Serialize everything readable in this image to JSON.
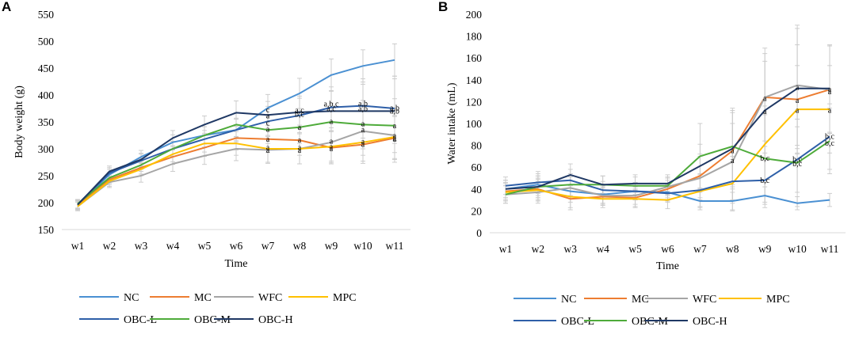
{
  "figure": {
    "colors": {
      "NC": "#4a90d2",
      "MC": "#ed7d31",
      "WFC": "#a5a5a5",
      "MPC": "#ffc000",
      "OBC-L": "#2e5fa8",
      "OBC-M": "#4eab3a",
      "OBC-H": "#1f3864",
      "error_bar": "#c8c8c8"
    }
  },
  "chart_data": [
    {
      "panel_label": "A",
      "type": "line",
      "title": "",
      "xlabel": "Time",
      "ylabel": "Body weight (g)",
      "categories": [
        "w1",
        "w2",
        "w3",
        "w4",
        "w5",
        "w6",
        "w7",
        "w8",
        "w9",
        "w10",
        "w11"
      ],
      "ylim": [
        150,
        550
      ],
      "yticks": [
        150,
        200,
        250,
        300,
        350,
        400,
        450,
        500,
        550
      ],
      "ytick_labels": [
        "150",
        "200",
        "250",
        "300",
        "350",
        "400",
        "450",
        "500",
        "550"
      ],
      "legend": [
        "NC",
        "MC",
        "WFC",
        "MPC",
        "OBC-L",
        "OBC-M",
        "OBC-H"
      ],
      "legend_position": "bottom",
      "series": [
        {
          "name": "NC",
          "values": [
            195,
            252,
            285,
            312,
            325,
            335,
            376,
            403,
            437,
            454,
            465
          ],
          "err": [
            8,
            10,
            12,
            14,
            16,
            20,
            25,
            28,
            30,
            30,
            30
          ]
        },
        {
          "name": "MC",
          "values": [
            195,
            243,
            265,
            285,
            302,
            320,
            318,
            316,
            302,
            308,
            320
          ],
          "err": [
            8,
            10,
            12,
            14,
            16,
            22,
            25,
            28,
            30,
            35,
            40
          ]
        },
        {
          "name": "WFC",
          "values": [
            193,
            238,
            250,
            272,
            287,
            300,
            298,
            300,
            312,
            333,
            325
          ],
          "err": [
            8,
            10,
            12,
            14,
            16,
            22,
            25,
            28,
            35,
            45,
            50
          ]
        },
        {
          "name": "MPC",
          "values": [
            193,
            240,
            262,
            290,
            310,
            310,
            300,
            300,
            304,
            312,
            322
          ],
          "err": [
            8,
            10,
            12,
            14,
            16,
            22,
            25,
            28,
            30,
            35,
            40
          ]
        },
        {
          "name": "OBC-L",
          "values": [
            197,
            255,
            278,
            300,
            318,
            335,
            351,
            362,
            377,
            380,
            375
          ],
          "err": [
            8,
            10,
            12,
            14,
            16,
            22,
            28,
            32,
            38,
            50,
            60
          ]
        },
        {
          "name": "OBC-M",
          "values": [
            198,
            246,
            270,
            300,
            325,
            345,
            335,
            340,
            350,
            345,
            343
          ],
          "err": [
            8,
            10,
            12,
            14,
            16,
            22,
            25,
            30,
            35,
            45,
            50
          ]
        },
        {
          "name": "OBC-H",
          "values": [
            196,
            258,
            280,
            320,
            345,
            367,
            363,
            368,
            370,
            370,
            370
          ],
          "err": [
            8,
            10,
            12,
            14,
            16,
            22,
            25,
            30,
            38,
            50,
            60
          ]
        }
      ],
      "annotations": [
        {
          "x": "w7",
          "y": 372,
          "text": "c"
        },
        {
          "x": "w7",
          "y": 361,
          "text": "a"
        },
        {
          "x": "w7",
          "y": 348,
          "text": "c"
        },
        {
          "x": "w7",
          "y": 336,
          "text": "a"
        },
        {
          "x": "w7",
          "y": 318,
          "text": "a"
        },
        {
          "x": "w7",
          "y": 302,
          "text": "a"
        },
        {
          "x": "w7",
          "y": 297,
          "text": "a"
        },
        {
          "x": "w8",
          "y": 371,
          "text": "a,c"
        },
        {
          "x": "w8",
          "y": 364,
          "text": "b,c"
        },
        {
          "x": "w8",
          "y": 340,
          "text": "a"
        },
        {
          "x": "w8",
          "y": 316,
          "text": "a"
        },
        {
          "x": "w8",
          "y": 302,
          "text": "a"
        },
        {
          "x": "w8",
          "y": 297,
          "text": "a"
        },
        {
          "x": "w9",
          "y": 383,
          "text": "a,b,c"
        },
        {
          "x": "w9",
          "y": 374,
          "text": "a,c"
        },
        {
          "x": "w9",
          "y": 351,
          "text": "a"
        },
        {
          "x": "w9",
          "y": 314,
          "text": "a"
        },
        {
          "x": "w9",
          "y": 304,
          "text": "a"
        },
        {
          "x": "w9",
          "y": 300,
          "text": "a"
        },
        {
          "x": "w10",
          "y": 384,
          "text": "a,b"
        },
        {
          "x": "w10",
          "y": 374,
          "text": "a,b"
        },
        {
          "x": "w10",
          "y": 346,
          "text": "a"
        },
        {
          "x": "w10",
          "y": 335,
          "text": "a"
        },
        {
          "x": "w10",
          "y": 313,
          "text": "a"
        },
        {
          "x": "w10",
          "y": 308,
          "text": "a"
        },
        {
          "x": "w11",
          "y": 376,
          "text": "a,b"
        },
        {
          "x": "w11",
          "y": 370,
          "text": "a,b"
        },
        {
          "x": "w11",
          "y": 343,
          "text": "a"
        },
        {
          "x": "w11",
          "y": 324,
          "text": "a"
        },
        {
          "x": "w11",
          "y": 320,
          "text": "a"
        },
        {
          "x": "w11",
          "y": 318,
          "text": "a"
        }
      ]
    },
    {
      "panel_label": "B",
      "type": "line",
      "title": "",
      "xlabel": "Time",
      "ylabel": "Water intake (mL)",
      "categories": [
        "w1",
        "w2",
        "w3",
        "w4",
        "w5",
        "w6",
        "w7",
        "w8",
        "w9",
        "w10",
        "w11"
      ],
      "ylim": [
        0,
        200
      ],
      "yticks": [
        0,
        20,
        40,
        60,
        80,
        100,
        120,
        140,
        160,
        180,
        200
      ],
      "ytick_labels": [
        "0",
        "20",
        "40",
        "60",
        "80",
        "100",
        "120",
        "140",
        "160",
        "180",
        "200"
      ],
      "legend": [
        "NC",
        "MC",
        "WFC",
        "MPC",
        "OBC-L",
        "OBC-M",
        "OBC-H"
      ],
      "legend_position": "bottom",
      "series": [
        {
          "name": "NC",
          "values": [
            40,
            44,
            38,
            35,
            38,
            37,
            29,
            29,
            34,
            27,
            30
          ],
          "err": [
            8,
            10,
            10,
            8,
            8,
            8,
            8,
            8,
            8,
            6,
            6
          ]
        },
        {
          "name": "MC",
          "values": [
            38,
            40,
            31,
            33,
            32,
            40,
            52,
            75,
            124,
            122,
            131
          ],
          "err": [
            8,
            10,
            10,
            8,
            8,
            8,
            20,
            35,
            40,
            50,
            40
          ]
        },
        {
          "name": "WFC",
          "values": [
            35,
            37,
            41,
            34,
            34,
            42,
            50,
            65,
            124,
            135,
            131
          ],
          "err": [
            8,
            10,
            10,
            8,
            8,
            8,
            20,
            35,
            45,
            55,
            40
          ]
        },
        {
          "name": "MPC",
          "values": [
            37,
            39,
            33,
            31,
            31,
            30,
            38,
            45,
            81,
            113,
            113
          ],
          "err": [
            8,
            10,
            10,
            8,
            8,
            8,
            15,
            25,
            35,
            40,
            40
          ]
        },
        {
          "name": "OBC-L",
          "values": [
            43,
            46,
            48,
            39,
            38,
            36,
            39,
            47,
            48,
            67,
            88
          ],
          "err": [
            8,
            10,
            10,
            8,
            8,
            8,
            15,
            20,
            25,
            30,
            30
          ]
        },
        {
          "name": "OBC-M",
          "values": [
            35,
            42,
            44,
            44,
            43,
            43,
            70,
            79,
            68,
            64,
            84
          ],
          "err": [
            8,
            10,
            10,
            8,
            8,
            8,
            30,
            35,
            40,
            40,
            30
          ]
        },
        {
          "name": "OBC-H",
          "values": [
            40,
            42,
            53,
            44,
            45,
            45,
            61,
            77,
            112,
            132,
            132
          ],
          "err": [
            8,
            10,
            10,
            8,
            8,
            8,
            20,
            35,
            45,
            55,
            40
          ]
        }
      ],
      "annotations": [
        {
          "x": "w8",
          "y": 75,
          "text": "a"
        },
        {
          "x": "w8",
          "y": 66,
          "text": "a"
        },
        {
          "x": "w9",
          "y": 123,
          "text": "a"
        },
        {
          "x": "w9",
          "y": 111,
          "text": "a"
        },
        {
          "x": "w9",
          "y": 68,
          "text": "b,c"
        },
        {
          "x": "w9",
          "y": 48,
          "text": "b,c"
        },
        {
          "x": "w10",
          "y": 133,
          "text": "a"
        },
        {
          "x": "w10",
          "y": 121,
          "text": "a"
        },
        {
          "x": "w10",
          "y": 112,
          "text": "a"
        },
        {
          "x": "w10",
          "y": 67,
          "text": "b,c"
        },
        {
          "x": "w10",
          "y": 63,
          "text": "b,c"
        },
        {
          "x": "w11",
          "y": 131,
          "text": "a"
        },
        {
          "x": "w11",
          "y": 129,
          "text": "a"
        },
        {
          "x": "w11",
          "y": 112,
          "text": "a"
        },
        {
          "x": "w11",
          "y": 88,
          "text": "b,c"
        },
        {
          "x": "w11",
          "y": 82,
          "text": "b,c"
        }
      ]
    }
  ]
}
